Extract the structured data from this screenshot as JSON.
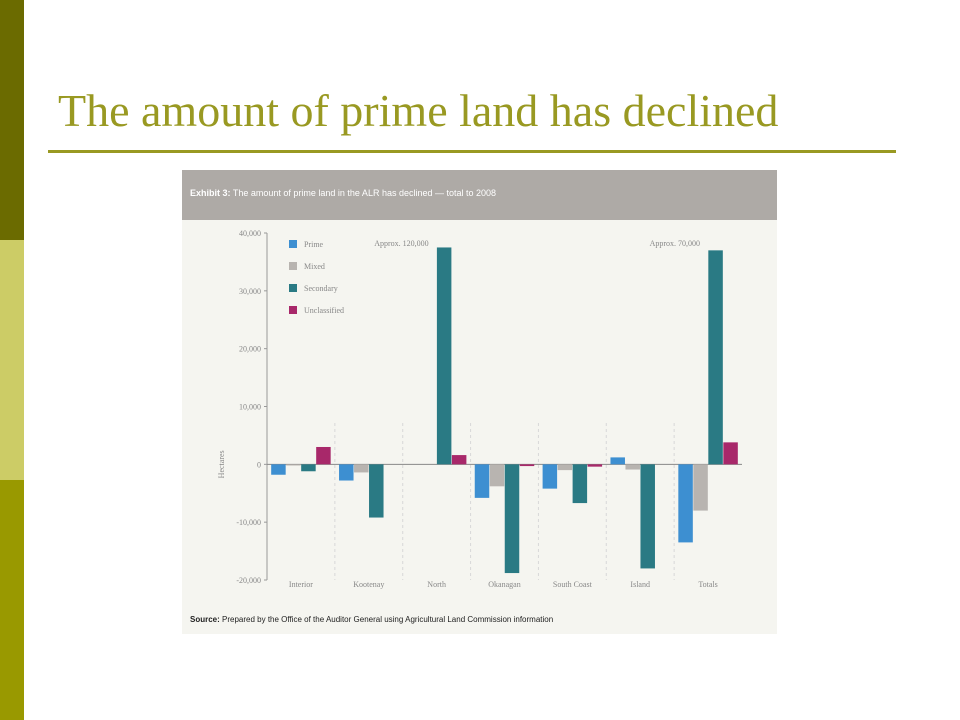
{
  "slide": {
    "title": "The amount of prime land has declined"
  },
  "exhibit": {
    "label": "Exhibit 3:",
    "caption": "The amount of prime land in the ALR has declined — total to 2008",
    "source_label": "Source:",
    "source": "Prepared by the Office of the Auditor General using Agricultural Land Commission information"
  },
  "chart_data": {
    "type": "bar",
    "categories": [
      "Interior",
      "Kootenay",
      "North",
      "Okanagan",
      "South Coast",
      "Island",
      "Totals"
    ],
    "series": [
      {
        "name": "Prime",
        "color": "#3d8fd1",
        "values": [
          -1800,
          -2800,
          0,
          -5800,
          -4200,
          1200,
          -13500
        ]
      },
      {
        "name": "Mixed",
        "color": "#b8b4b0",
        "values": [
          -200,
          -1400,
          0,
          -3800,
          -1000,
          -900,
          -8000
        ]
      },
      {
        "name": "Secondary",
        "color": "#2a7a84",
        "values": [
          -1200,
          -9200,
          37500,
          -18800,
          -6700,
          -18000,
          37000
        ]
      },
      {
        "name": "Unclassified",
        "color": "#a8286a",
        "values": [
          3000,
          0,
          1600,
          -300,
          -400,
          0,
          3800
        ]
      }
    ],
    "annotations": [
      {
        "category": "North",
        "text": "Approx. 120,000"
      },
      {
        "category": "Totals",
        "text": "Approx. 70,000"
      }
    ],
    "ylabel": "Hectares",
    "xlabel": "",
    "ylim": [
      -20000,
      40000
    ],
    "yticks": [
      40000,
      30000,
      20000,
      10000,
      0,
      -10000,
      -20000
    ],
    "ytick_labels": [
      "40,000",
      "30,000",
      "20,000",
      "10,000",
      "0",
      "-10,000",
      "-20,000"
    ],
    "legend_position": "top-left",
    "grid": false
  }
}
